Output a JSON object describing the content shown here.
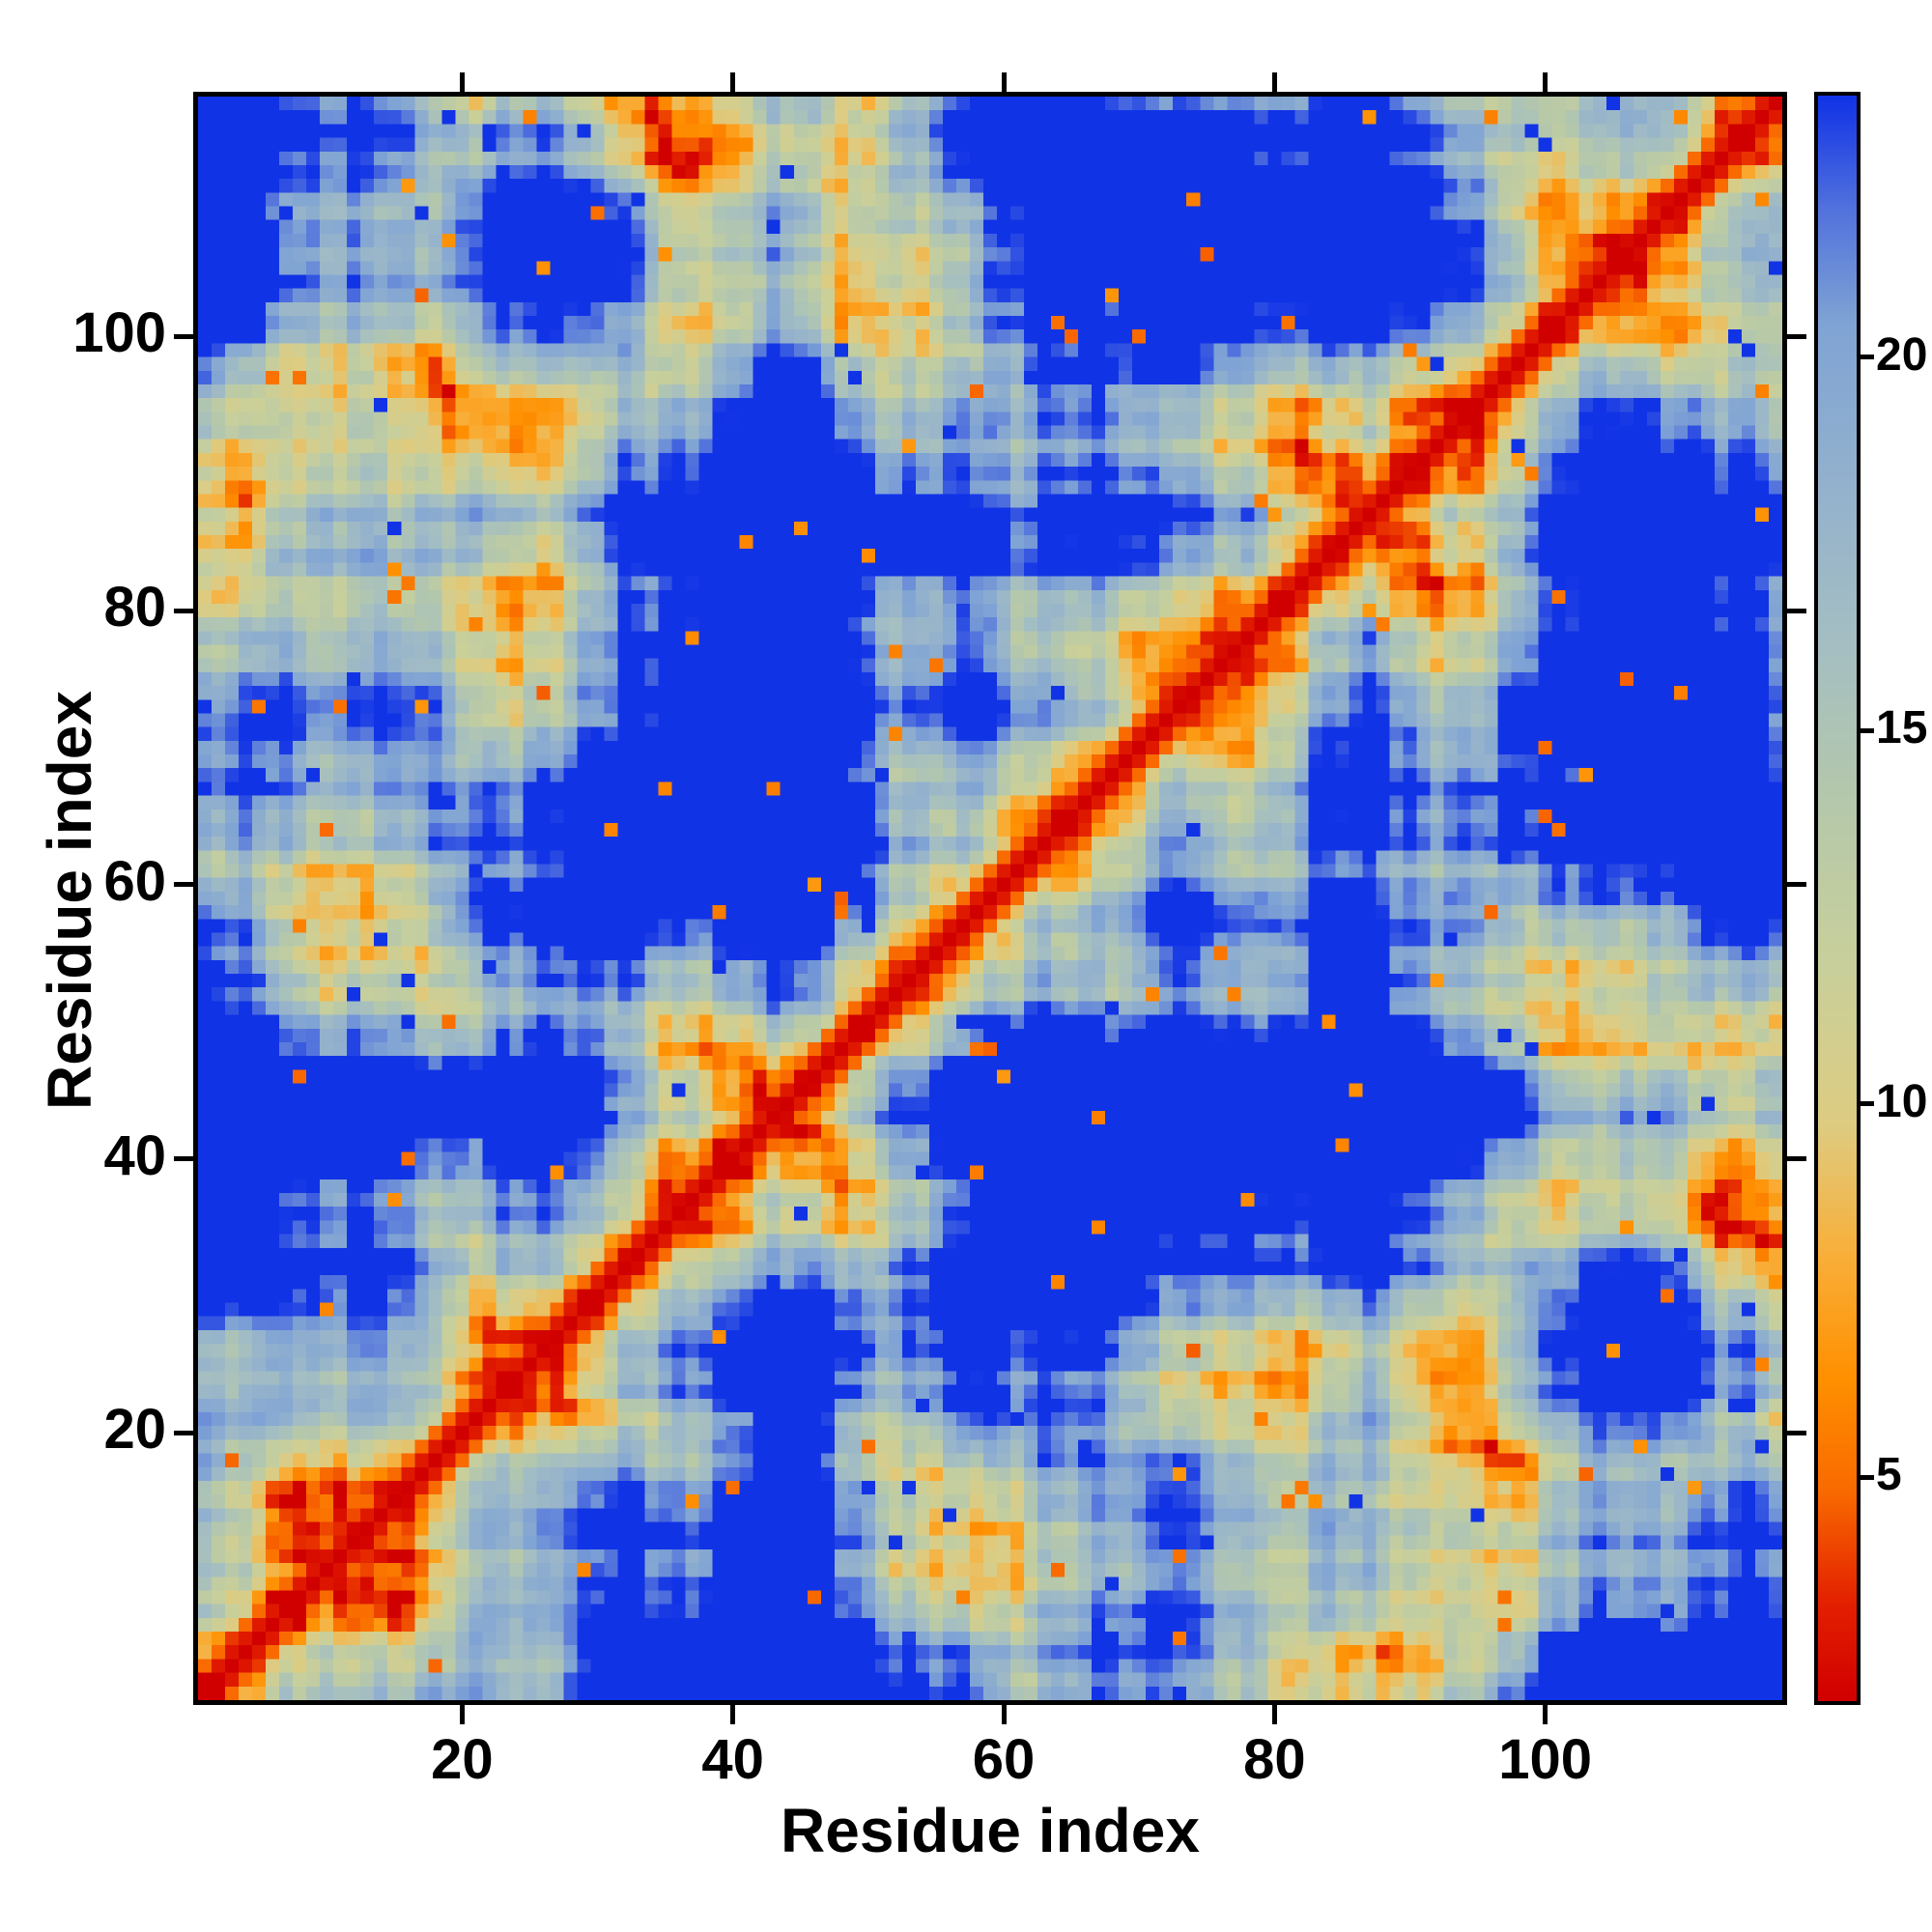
{
  "figure": {
    "background": "#ffffff",
    "frame_color": "#000000"
  },
  "chart_data": {
    "type": "heatmap",
    "title": "",
    "xlabel": "Residue index",
    "ylabel": "Residue index",
    "axis_range": [
      1,
      117
    ],
    "x_ticks": [
      20,
      40,
      60,
      80,
      100
    ],
    "x_tick_labels": [
      "20",
      "40",
      "60",
      "80",
      "100"
    ],
    "y_ticks": [
      20,
      40,
      60,
      80,
      100
    ],
    "y_tick_labels": [
      "20",
      "40",
      "60",
      "80",
      "100"
    ],
    "grid": false,
    "legend": "none",
    "colorbar": {
      "position": "right",
      "orientation": "vertical",
      "vmin": 2,
      "vmax": 23.5,
      "ticks": [
        5,
        10,
        15,
        20
      ],
      "tick_labels": [
        "5",
        "10",
        "15",
        "20"
      ]
    },
    "colormap": {
      "low_color": "#d10000",
      "high_color": "#1133e6",
      "stops": [
        [
          0.0,
          "#d10000"
        ],
        [
          0.06,
          "#e32000"
        ],
        [
          0.13,
          "#f96a00"
        ],
        [
          0.2,
          "#ff9000"
        ],
        [
          0.28,
          "#f8b03c"
        ],
        [
          0.36,
          "#ddcc82"
        ],
        [
          0.46,
          "#c8cf9b"
        ],
        [
          0.56,
          "#b5c8ab"
        ],
        [
          0.66,
          "#a4bec2"
        ],
        [
          0.76,
          "#93b1cd"
        ],
        [
          0.86,
          "#7fa3d4"
        ],
        [
          0.93,
          "#5272dd"
        ],
        [
          1.0,
          "#1133e6"
        ]
      ]
    },
    "matrix": {
      "n": 117,
      "kind": "residue-residue distance map (symmetric, zero red diagonal, values clipped to vmax render deep blue)",
      "note": "Per-cell values are not individually readable from the screenshot; the matrix is reconstructed with this deterministic generator to reproduce the visible pattern: red main diagonal, orange near-diagonal helical contacts, curved orange return ridges, khaki mid-range background with plaid texture, and deep-blue far-contact blobs.",
      "generator": {
        "n": 117,
        "distance_scale": 0.75,
        "row_bias": 1.6,
        "cell_noise": 1.5,
        "speck_orange_p": 0.012,
        "speck_blue_p": 0.012,
        "terms": {
          "x": [
            [
              16,
              0.085,
              1.0,
              "sin"
            ],
            [
              9,
              0.21,
              2.1,
              "sin"
            ],
            [
              3.5,
              0.53,
              0.7,
              "sin"
            ],
            [
              2.3,
              1.745,
              0.0,
              "cos"
            ]
          ],
          "y": [
            [
              16,
              0.085,
              0.4,
              "cos"
            ],
            [
              7,
              0.16,
              4.2,
              "sin"
            ],
            [
              3.2,
              0.47,
              2.9,
              "sin"
            ],
            [
              2.3,
              1.745,
              0.0,
              "sin"
            ]
          ],
          "z": [
            [
              11,
              0.13,
              0.9,
              "sin"
            ],
            [
              6,
              0.27,
              2.8,
              "cos"
            ],
            [
              3.0,
              0.61,
              5.0,
              "sin"
            ],
            [
              1.3,
              1.1,
              1.3,
              "sin"
            ]
          ]
        }
      }
    }
  }
}
